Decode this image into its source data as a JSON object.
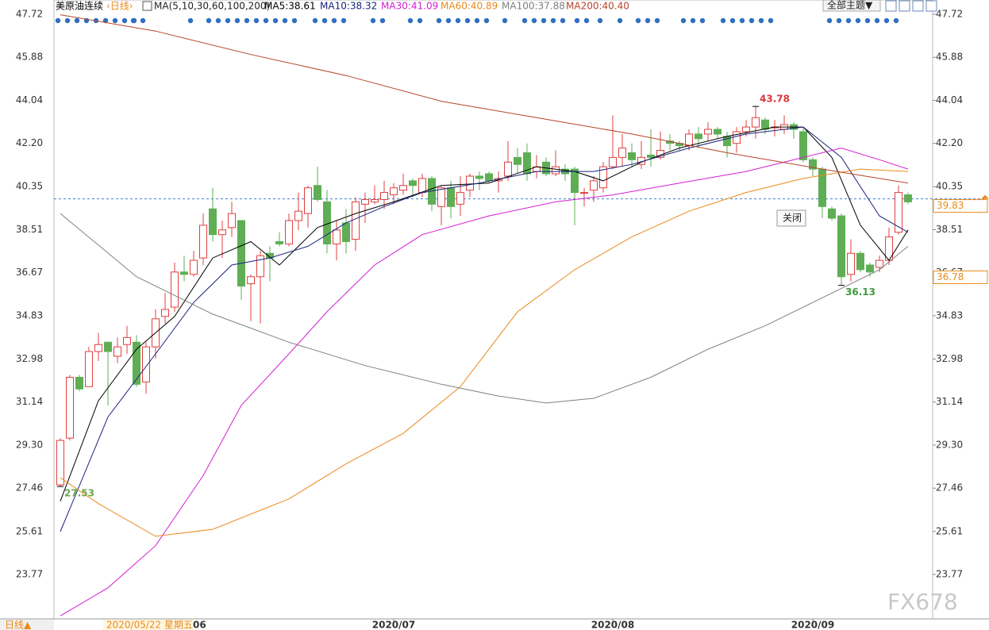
{
  "chart_data": {
    "type": "candlestick",
    "title": "美原油连续",
    "period": "‹日线›",
    "indicator": "MA(5,10,30,60,100,200)",
    "up_color": "#e0403f",
    "down_color": "#5fae55",
    "ylim": [
      21.87,
      48.33
    ],
    "xlim": [
      0,
      89
    ],
    "yticks": [
      47.72,
      45.88,
      44.04,
      {
        "value": 42.2,
        "label": "42.20"
      },
      40.35,
      38.51,
      36.67,
      34.83,
      32.98,
      31.14,
      {
        "value": 29.3,
        "label": "29.30"
      },
      27.46,
      25.61,
      23.77
    ],
    "xticks": [
      {
        "value": 35,
        "label": "2020/07"
      },
      {
        "value": 58,
        "label": "2020/08"
      },
      {
        "value": 79,
        "label": "2020/09"
      }
    ],
    "ohlc": {
      "open": [
        27.6,
        29.6,
        32.2,
        31.8,
        33.3,
        33.7,
        33.1,
        33.6,
        33.7,
        32.0,
        33.5,
        34.8,
        35.2,
        36.7,
        36.6,
        37.3,
        39.4,
        38.3,
        38.6,
        38.9,
        36.2,
        36.5,
        37.5,
        38.0,
        37.9,
        38.9,
        39.2,
        40.4,
        39.7,
        37.9,
        38.8,
        38.1,
        39.6,
        39.7,
        39.8,
        40.0,
        40.2,
        40.6,
        40.1,
        40.7,
        39.5,
        40.3,
        39.6,
        40.2,
        40.8,
        40.9,
        40.6,
        40.8,
        41.6,
        41.8,
        41.0,
        41.4,
        40.9,
        41.1,
        41.1,
        40.1,
        40.2,
        40.3,
        41.2,
        41.6,
        41.8,
        41.3,
        41.7,
        41.6,
        42.3,
        42.2,
        42.1,
        42.6,
        42.6,
        42.8,
        42.5,
        42.2,
        42.7,
        42.9,
        43.2,
        42.9,
        42.8,
        43.0,
        42.7,
        41.5,
        41.1,
        39.4,
        39.1,
        36.6,
        37.5,
        37.0,
        36.9,
        37.2,
        38.4,
        40.0
      ],
      "high": [
        29.6,
        32.3,
        32.3,
        33.5,
        34.1,
        33.7,
        33.9,
        34.4,
        34.0,
        33.7,
        35.1,
        35.8,
        37.1,
        37.4,
        37.6,
        39.2,
        40.3,
        38.9,
        39.7,
        38.9,
        36.6,
        37.6,
        37.8,
        38.4,
        39.2,
        40.1,
        40.4,
        41.2,
        40.2,
        38.9,
        39.4,
        39.9,
        40.1,
        40.4,
        40.6,
        40.5,
        40.9,
        40.7,
        40.9,
        40.8,
        40.4,
        40.6,
        40.8,
        40.9,
        41.0,
        41.0,
        41.0,
        42.3,
        42.0,
        42.2,
        41.7,
        41.6,
        41.9,
        41.3,
        41.2,
        40.3,
        40.8,
        41.4,
        43.4,
        42.6,
        42.2,
        42.3,
        42.8,
        42.7,
        42.6,
        42.3,
        42.8,
        42.9,
        43.1,
        42.9,
        42.7,
        42.9,
        43.2,
        43.78,
        43.3,
        43.2,
        43.4,
        43.1,
        42.9,
        41.6,
        41.2,
        39.5,
        39.2,
        38.1,
        37.6,
        37.1,
        37.4,
        38.6,
        40.4,
        40.1
      ],
      "low": [
        27.53,
        29.5,
        31.6,
        31.8,
        32.9,
        31.0,
        32.8,
        33.2,
        31.8,
        31.5,
        33.0,
        34.5,
        35.0,
        36.3,
        36.5,
        37.0,
        38.0,
        37.3,
        38.2,
        35.5,
        34.6,
        34.5,
        36.3,
        37.8,
        37.8,
        38.5,
        38.6,
        39.7,
        37.5,
        37.2,
        37.5,
        37.6,
        38.8,
        39.6,
        39.4,
        39.6,
        40.0,
        39.9,
        39.9,
        39.3,
        38.7,
        39.0,
        39.1,
        39.9,
        40.2,
        40.5,
        40.1,
        40.6,
        40.9,
        40.6,
        40.7,
        40.8,
        40.8,
        40.6,
        38.7,
        39.5,
        39.7,
        40.1,
        41.1,
        41.2,
        41.2,
        41.1,
        41.2,
        41.5,
        41.9,
        41.9,
        41.9,
        42.0,
        42.3,
        42.4,
        41.6,
        41.8,
        42.5,
        42.4,
        42.6,
        42.5,
        42.6,
        42.4,
        41.4,
        40.8,
        39.0,
        38.9,
        36.13,
        36.3,
        36.7,
        36.5,
        36.7,
        37.0,
        38.3,
        39.6
      ],
      "close": [
        29.5,
        32.2,
        31.7,
        33.3,
        33.6,
        33.3,
        33.5,
        33.9,
        31.9,
        33.5,
        34.7,
        35.1,
        36.7,
        36.6,
        37.2,
        38.7,
        38.3,
        38.5,
        39.2,
        36.1,
        36.5,
        37.4,
        37.3,
        37.9,
        38.9,
        39.3,
        40.3,
        39.8,
        37.9,
        38.5,
        38.0,
        39.7,
        39.8,
        39.8,
        40.1,
        40.3,
        40.4,
        40.4,
        40.7,
        39.6,
        40.3,
        39.5,
        40.1,
        40.8,
        40.7,
        40.6,
        40.7,
        41.4,
        41.3,
        40.9,
        41.2,
        40.9,
        41.2,
        40.9,
        40.1,
        40.1,
        40.6,
        41.2,
        41.6,
        42.0,
        41.5,
        41.6,
        41.6,
        41.9,
        42.2,
        42.1,
        42.6,
        42.4,
        42.8,
        42.6,
        42.1,
        42.7,
        42.9,
        43.3,
        42.8,
        42.9,
        43.0,
        42.8,
        41.5,
        41.1,
        39.5,
        39.0,
        36.5,
        37.5,
        36.8,
        36.7,
        37.2,
        38.2,
        40.1,
        39.7
      ]
    },
    "extreme_labels": [
      {
        "index": 73,
        "path": "high",
        "color": "#d9363e"
      },
      {
        "index": 82,
        "path": "low",
        "color": "#3f9a3f"
      },
      {
        "index": 0,
        "path": "low",
        "color": "#6aa84f"
      }
    ],
    "series": [
      {
        "name": "MA5:38.61",
        "color": "#000000",
        "x": [
          0,
          4,
          8,
          12,
          16,
          20,
          23,
          27,
          31,
          35,
          40,
          45,
          50,
          54,
          57,
          61,
          65,
          70,
          75,
          78,
          81,
          84,
          87,
          89
        ],
        "values": [
          26.9,
          31.2,
          33.4,
          34.8,
          37.3,
          38.0,
          37.0,
          38.6,
          39.2,
          39.7,
          40.4,
          40.5,
          41.2,
          41.0,
          40.6,
          41.4,
          42.0,
          42.5,
          42.9,
          42.9,
          41.6,
          38.7,
          37.2,
          38.5
        ]
      },
      {
        "name": "MA10:38.32",
        "color": "#1a237e",
        "x": [
          0,
          5,
          10,
          14,
          18,
          22,
          26,
          30,
          34,
          38,
          44,
          50,
          56,
          60,
          66,
          72,
          78,
          82,
          86,
          89
        ],
        "values": [
          25.6,
          30.5,
          33.2,
          35.4,
          37.0,
          37.3,
          37.8,
          38.8,
          39.5,
          40.1,
          40.5,
          41.0,
          41.0,
          41.3,
          42.0,
          42.6,
          42.9,
          41.6,
          39.1,
          38.4
        ]
      },
      {
        "name": "MA30:41.09",
        "color": "#d21fd2",
        "x": [
          0,
          5,
          10,
          15,
          19,
          24,
          28,
          33,
          38,
          45,
          52,
          58,
          65,
          72,
          78,
          82,
          86,
          89
        ],
        "values": [
          22.0,
          23.2,
          25.0,
          28.0,
          31.0,
          33.2,
          35.0,
          37.0,
          38.3,
          39.1,
          39.7,
          40.0,
          40.5,
          41.0,
          41.6,
          42.0,
          41.5,
          41.1
        ]
      },
      {
        "name": "MA60:40.89",
        "color": "#e98a1c",
        "x": [
          0,
          4,
          10,
          16,
          24,
          30,
          36,
          42,
          48,
          54,
          60,
          66,
          72,
          78,
          84,
          89
        ],
        "values": [
          27.9,
          26.8,
          25.4,
          25.7,
          27.0,
          28.5,
          29.8,
          31.8,
          35.0,
          36.8,
          38.2,
          39.3,
          40.1,
          40.7,
          41.1,
          41.0
        ]
      },
      {
        "name": "MA100:37.88",
        "color": "#808080",
        "x": [
          0,
          8,
          16,
          24,
          32,
          40,
          46,
          51,
          56,
          62,
          68,
          74,
          80,
          86,
          89
        ],
        "values": [
          39.2,
          36.5,
          34.9,
          33.7,
          32.7,
          31.9,
          31.4,
          31.1,
          31.3,
          32.2,
          33.4,
          34.4,
          35.6,
          36.8,
          37.8
        ]
      },
      {
        "name": "MA200:40.40",
        "color": "#b5442a",
        "x": [
          0,
          10,
          20,
          30,
          40,
          50,
          60,
          70,
          80,
          89
        ],
        "values": [
          47.7,
          47.0,
          46.0,
          45.1,
          44.0,
          43.3,
          42.6,
          41.8,
          41.1,
          40.5
        ]
      }
    ],
    "price_labels": [
      {
        "value": 39.83,
        "dashed_line": true
      },
      {
        "value": 36.78,
        "dashed_line": false
      }
    ],
    "ui": {
      "theme_button": "全部主题▼",
      "close_button": "关闭",
      "period_button": "日线▲",
      "crosshair_date": "2020/05/22 星期五",
      "partial_tick": "06",
      "watermark": "FX678"
    }
  }
}
